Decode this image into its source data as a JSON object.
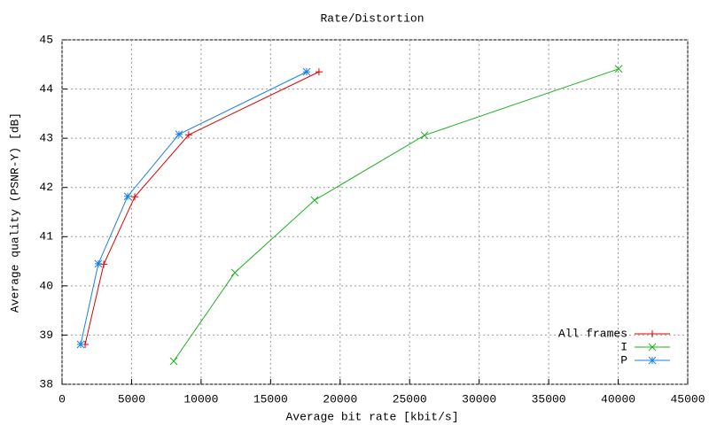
{
  "chart_data": {
    "type": "line",
    "title": "Rate/Distortion",
    "x_label": "Average bit rate [kbit/s]",
    "y_label": "Average quality (PSNR-Y) [dB]",
    "xlim": [
      0,
      45000
    ],
    "xticks": [
      0,
      5000,
      10000,
      15000,
      20000,
      25000,
      30000,
      35000,
      40000,
      45000
    ],
    "ylim": [
      38,
      45
    ],
    "yticks": [
      38,
      39,
      40,
      41,
      42,
      43,
      44,
      45
    ],
    "grid": true,
    "legend": "bottom right",
    "series": [
      {
        "name": "All frames",
        "color": "#e00000",
        "marker": "+",
        "x": [
          1660,
          3000,
          5230,
          9110,
          18480
        ],
        "values": [
          38.81,
          40.44,
          41.81,
          43.07,
          44.35
        ]
      },
      {
        "name": "I",
        "color": "#20b020",
        "marker": "x",
        "x": [
          8030,
          12430,
          18160,
          26070,
          40030
        ],
        "values": [
          38.47,
          40.27,
          41.74,
          43.06,
          44.41
        ]
      },
      {
        "name": "P",
        "color": "#1a7fe0",
        "marker": "*",
        "x": [
          1340,
          2610,
          4720,
          8410,
          17590
        ],
        "values": [
          38.81,
          40.45,
          41.82,
          43.08,
          44.35
        ]
      }
    ]
  }
}
